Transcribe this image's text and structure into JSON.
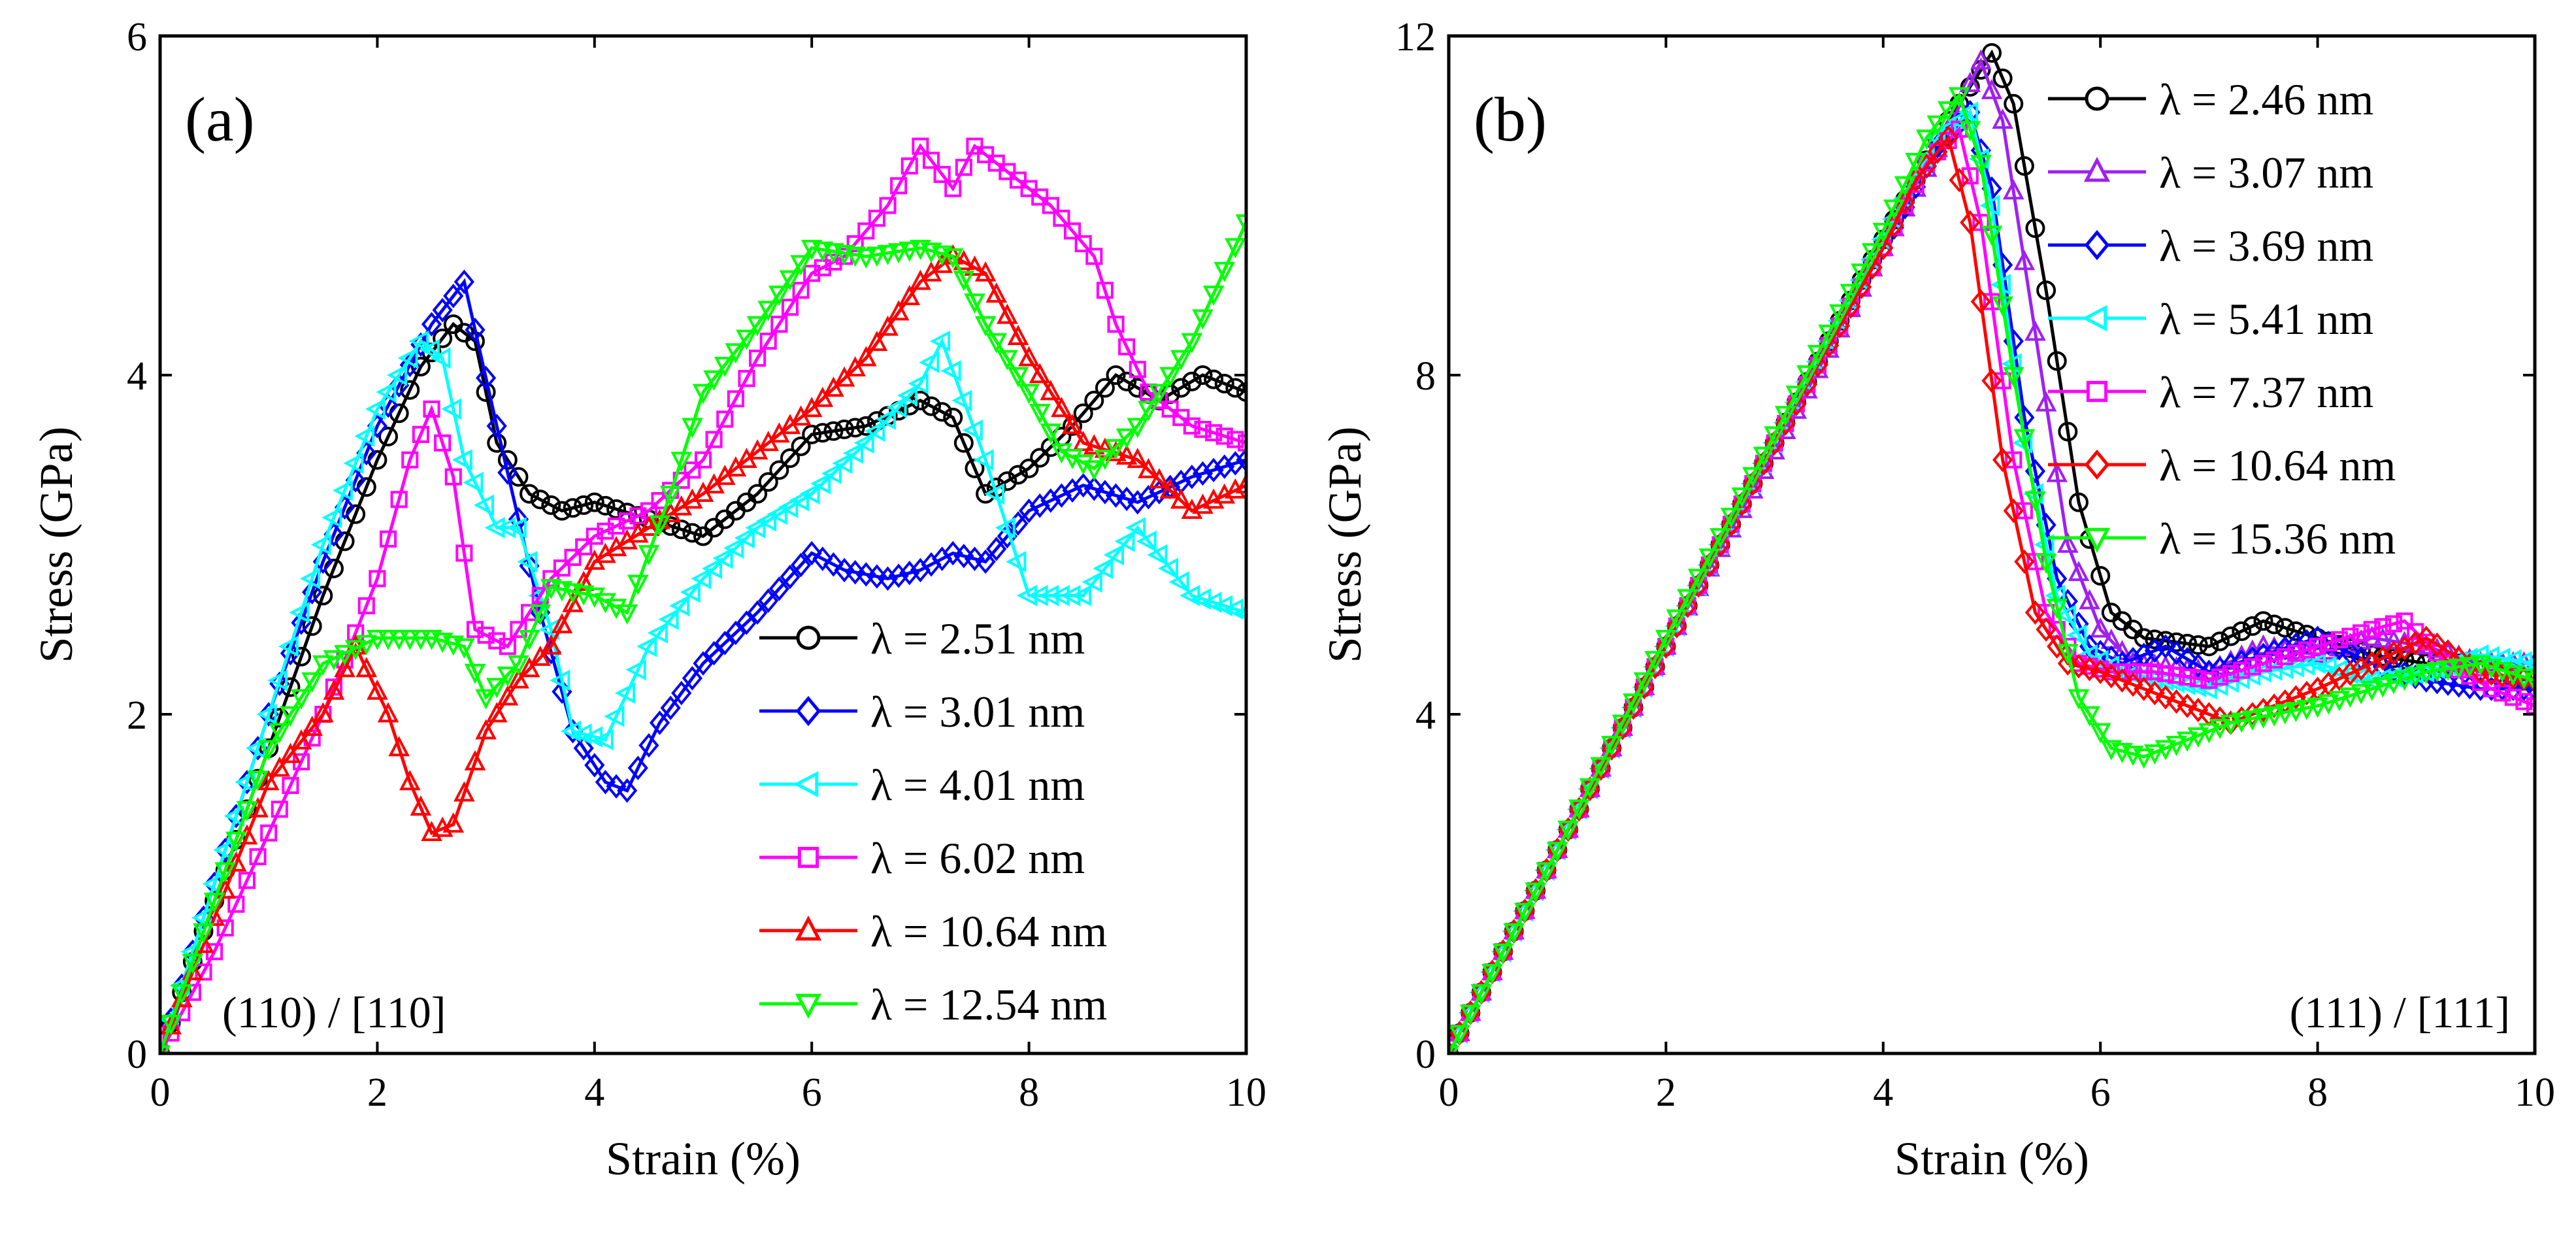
{
  "chart_data": [
    {
      "id": "a",
      "type": "line",
      "panel_label": "(a)",
      "annotation": "(110) / [110]",
      "annotation_position": "bottom-left",
      "xlabel": "Strain (%)",
      "ylabel": "Stress (GPa)",
      "xlim": [
        0,
        10
      ],
      "ylim": [
        0,
        6
      ],
      "xticks": [
        0,
        2,
        4,
        6,
        8,
        10
      ],
      "yticks": [
        0,
        2,
        4,
        6
      ],
      "legend_position": "bottom-right",
      "series": [
        {
          "name": "λ = 2.51 nm",
          "color": "#000000",
          "marker": "circle",
          "x": [
            0,
            0.5,
            1,
            1.5,
            2,
            2.4,
            2.7,
            2.9,
            3.1,
            3.4,
            3.7,
            4,
            4.5,
            5,
            5.5,
            6,
            6.5,
            7,
            7.3,
            7.6,
            8,
            8.4,
            8.8,
            9.2,
            9.6,
            10
          ],
          "y": [
            0,
            0.9,
            1.8,
            2.7,
            3.5,
            4.05,
            4.3,
            4.2,
            3.6,
            3.3,
            3.2,
            3.25,
            3.15,
            3.05,
            3.3,
            3.65,
            3.7,
            3.85,
            3.75,
            3.3,
            3.45,
            3.7,
            4.0,
            3.85,
            4.0,
            3.9
          ]
        },
        {
          "name": "λ = 3.01 nm",
          "color": "#0000ff",
          "marker": "diamond",
          "x": [
            0,
            0.5,
            1,
            1.5,
            2,
            2.5,
            2.8,
            3.1,
            3.5,
            3.8,
            4.1,
            4.3,
            4.6,
            5,
            5.5,
            6,
            6.3,
            6.7,
            7,
            7.3,
            7.6,
            8,
            8.5,
            9,
            9.5,
            10
          ],
          "y": [
            0,
            1.0,
            2.0,
            2.9,
            3.7,
            4.3,
            4.55,
            3.7,
            2.6,
            1.9,
            1.6,
            1.55,
            1.95,
            2.3,
            2.6,
            2.95,
            2.85,
            2.8,
            2.85,
            2.95,
            2.9,
            3.2,
            3.35,
            3.25,
            3.4,
            3.5
          ]
        },
        {
          "name": "λ = 4.01 nm",
          "color": "#00ffff",
          "marker": "triangle-left",
          "x": [
            0,
            0.5,
            1,
            1.5,
            2,
            2.4,
            2.6,
            2.8,
            3.1,
            3.3,
            3.6,
            3.8,
            4.1,
            4.5,
            5,
            5.5,
            6,
            6.5,
            7,
            7.2,
            7.6,
            8,
            8.5,
            9,
            9.5,
            10
          ],
          "y": [
            0,
            1.0,
            2.0,
            3.0,
            3.8,
            4.2,
            4.1,
            3.5,
            3.1,
            3.1,
            2.5,
            1.9,
            1.85,
            2.4,
            2.8,
            3.1,
            3.3,
            3.6,
            3.95,
            4.2,
            3.5,
            2.7,
            2.7,
            3.1,
            2.7,
            2.6
          ]
        },
        {
          "name": "λ = 6.02 nm",
          "color": "#ff00ff",
          "marker": "square",
          "x": [
            0,
            0.5,
            1,
            1.5,
            2,
            2.3,
            2.5,
            2.7,
            2.9,
            3.2,
            3.6,
            4,
            4.5,
            5,
            5.5,
            6,
            6.3,
            6.7,
            7,
            7.3,
            7.5,
            7.8,
            8.2,
            8.6,
            8.8,
            9.1,
            9.5,
            10
          ],
          "y": [
            0,
            0.6,
            1.3,
            2.0,
            2.8,
            3.5,
            3.8,
            3.4,
            2.5,
            2.4,
            2.8,
            3.05,
            3.2,
            3.5,
            4.1,
            4.6,
            4.7,
            5.0,
            5.35,
            5.1,
            5.35,
            5.2,
            5.0,
            4.7,
            4.3,
            3.9,
            3.7,
            3.6
          ]
        },
        {
          "name": "λ = 10.64 nm",
          "color": "#ff0000",
          "marker": "triangle-up",
          "x": [
            0,
            0.5,
            1,
            1.5,
            1.8,
            2.1,
            2.3,
            2.5,
            2.7,
            3.0,
            3.3,
            3.6,
            4,
            4.5,
            5,
            5.5,
            6,
            6.5,
            7,
            7.3,
            7.6,
            8,
            8.5,
            9,
            9.5,
            10
          ],
          "y": [
            0,
            0.8,
            1.6,
            2.0,
            2.4,
            2.0,
            1.6,
            1.3,
            1.35,
            1.9,
            2.2,
            2.4,
            2.9,
            3.1,
            3.3,
            3.55,
            3.8,
            4.1,
            4.55,
            4.7,
            4.6,
            4.1,
            3.6,
            3.5,
            3.2,
            3.35
          ]
        },
        {
          "name": "λ = 12.54 nm",
          "color": "#00ff00",
          "marker": "triangle-down",
          "x": [
            0,
            0.5,
            1,
            1.5,
            2,
            2.5,
            2.8,
            3.0,
            3.3,
            3.6,
            4.0,
            4.3,
            4.7,
            5.0,
            5.5,
            6.0,
            6.5,
            7.0,
            7.3,
            7.6,
            8.0,
            8.3,
            8.6,
            9.0,
            9.5,
            10
          ],
          "y": [
            0,
            0.9,
            1.8,
            2.3,
            2.45,
            2.45,
            2.4,
            2.1,
            2.3,
            2.75,
            2.7,
            2.6,
            3.3,
            3.9,
            4.3,
            4.75,
            4.7,
            4.75,
            4.7,
            4.3,
            3.9,
            3.55,
            3.45,
            3.7,
            4.2,
            4.9
          ]
        }
      ]
    },
    {
      "id": "b",
      "type": "line",
      "panel_label": "(b)",
      "annotation": "(111) / [111]",
      "annotation_position": "bottom-right",
      "xlabel": "Strain (%)",
      "ylabel": "Stress (GPa)",
      "xlim": [
        0,
        10
      ],
      "ylim": [
        0,
        12
      ],
      "xticks": [
        0,
        2,
        4,
        6,
        8,
        10
      ],
      "yticks": [
        0,
        4,
        8,
        12
      ],
      "legend_position": "top-right",
      "series": [
        {
          "name": "λ = 2.46 nm",
          "color": "#000000",
          "marker": "circle",
          "x": [
            0,
            1,
            2,
            3,
            4,
            4.6,
            5.0,
            5.2,
            5.5,
            5.8,
            6.1,
            6.4,
            7,
            7.5,
            8,
            8.5,
            9,
            9.5,
            10
          ],
          "y": [
            0,
            2.4,
            4.8,
            7.2,
            9.6,
            11.0,
            11.8,
            11.2,
            9.0,
            6.5,
            5.2,
            4.9,
            4.8,
            5.1,
            4.9,
            4.7,
            4.6,
            4.6,
            4.5
          ]
        },
        {
          "name": "λ = 3.07 nm",
          "color": "#a020f0",
          "marker": "triangle-up",
          "x": [
            0,
            1,
            2,
            3,
            4,
            4.6,
            4.9,
            5.1,
            5.4,
            5.7,
            6.0,
            6.3,
            7,
            7.5,
            8,
            8.5,
            9,
            9.5,
            10
          ],
          "y": [
            0,
            2.4,
            4.8,
            7.1,
            9.5,
            10.9,
            11.7,
            11.0,
            8.5,
            6.0,
            5.0,
            4.6,
            4.5,
            4.8,
            4.7,
            4.9,
            4.8,
            4.6,
            4.6
          ]
        },
        {
          "name": "λ = 3.69 nm",
          "color": "#0000ff",
          "marker": "diamond",
          "x": [
            0,
            1,
            2,
            3,
            4,
            4.5,
            4.8,
            5.0,
            5.3,
            5.6,
            5.9,
            6.2,
            6.6,
            7,
            7.5,
            8,
            8.5,
            9,
            9.5,
            10
          ],
          "y": [
            0,
            2.4,
            4.8,
            7.2,
            9.5,
            10.7,
            11.1,
            10.2,
            7.5,
            5.6,
            4.8,
            4.6,
            4.8,
            4.5,
            4.7,
            4.9,
            4.6,
            4.4,
            4.3,
            4.3
          ]
        },
        {
          "name": "λ = 5.41 nm",
          "color": "#00ffff",
          "marker": "triangle-left",
          "x": [
            0,
            1,
            2,
            3,
            4,
            4.5,
            4.8,
            5.0,
            5.3,
            5.6,
            5.9,
            6.2,
            6.6,
            7,
            7.5,
            8,
            8.5,
            9,
            9.5,
            10
          ],
          "y": [
            0,
            2.4,
            4.8,
            7.2,
            9.6,
            10.8,
            11.1,
            10.0,
            7.2,
            5.4,
            4.7,
            4.5,
            4.4,
            4.3,
            4.5,
            4.6,
            4.4,
            4.5,
            4.7,
            4.6
          ]
        },
        {
          "name": "λ = 7.37 nm",
          "color": "#ff00ff",
          "marker": "square",
          "x": [
            0,
            1,
            2,
            3,
            4,
            4.4,
            4.7,
            4.9,
            5.2,
            5.5,
            5.8,
            6.1,
            6.5,
            7,
            7.5,
            8,
            8.5,
            8.8,
            9.2,
            9.6,
            10
          ],
          "y": [
            0,
            2.4,
            4.8,
            7.2,
            9.5,
            10.5,
            10.9,
            9.8,
            7.0,
            5.2,
            4.6,
            4.5,
            4.5,
            4.4,
            4.6,
            4.8,
            5.0,
            5.1,
            4.6,
            4.3,
            4.1
          ]
        },
        {
          "name": "λ = 10.64 nm",
          "color": "#ff0000",
          "marker": "diamond",
          "x": [
            0,
            1,
            2,
            3,
            4,
            4.3,
            4.6,
            4.8,
            5.1,
            5.4,
            5.7,
            6.0,
            6.4,
            6.8,
            7.2,
            7.6,
            8,
            8.5,
            9,
            9.5,
            10
          ],
          "y": [
            0,
            2.4,
            4.8,
            7.2,
            9.5,
            10.3,
            10.8,
            9.8,
            7.0,
            5.2,
            4.6,
            4.5,
            4.3,
            4.1,
            3.9,
            4.1,
            4.3,
            4.6,
            4.9,
            4.5,
            4.4
          ]
        },
        {
          "name": "λ = 15.36 nm",
          "color": "#00ff00",
          "marker": "triangle-down",
          "x": [
            0,
            1,
            2,
            3,
            4,
            4.4,
            4.7,
            4.9,
            5.2,
            5.5,
            5.8,
            6.1,
            6.4,
            6.8,
            7.2,
            7.6,
            8,
            8.5,
            9,
            9.5,
            10
          ],
          "y": [
            0,
            2.4,
            4.9,
            7.3,
            9.7,
            10.8,
            11.3,
            10.5,
            8.0,
            5.8,
            4.2,
            3.6,
            3.5,
            3.7,
            3.9,
            4.0,
            4.1,
            4.3,
            4.5,
            4.6,
            4.4
          ]
        }
      ]
    }
  ]
}
